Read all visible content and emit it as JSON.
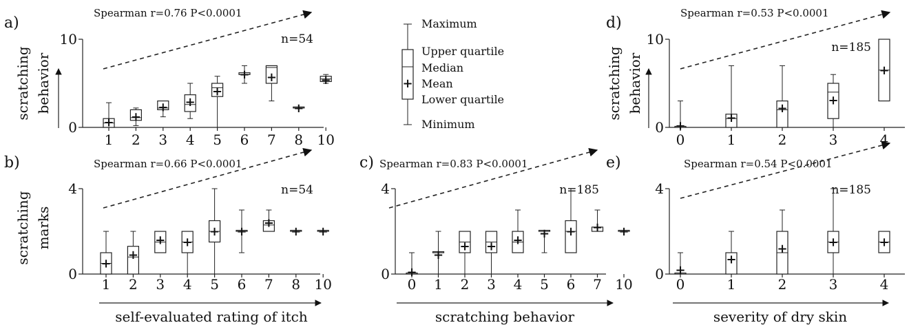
{
  "legend": {
    "maximum": "Maximum",
    "upper_quartile": "Upper quartile",
    "median": "Median",
    "mean": "Mean",
    "lower_quartile": "Lower quartile",
    "minimum": "Minimum"
  },
  "chart_data": [
    {
      "panel": "a)",
      "type": "box",
      "annotation": "Spearman r=0.76 P<0.0001",
      "n_label": "n=54",
      "ylabel": [
        "scratching",
        "behavior"
      ],
      "xlabel": "",
      "ylim": [
        0,
        10
      ],
      "yticks": [
        0,
        10
      ],
      "categories": [
        "1",
        "2",
        "3",
        "4",
        "5",
        "6",
        "7",
        "8",
        "10"
      ],
      "min": [
        0,
        0.2,
        1.2,
        1.0,
        0,
        5,
        3,
        2.2,
        5
      ],
      "q1": [
        0,
        0.8,
        2.0,
        1.8,
        3.5,
        6.0,
        5.0,
        2.2,
        5.2
      ],
      "median": [
        0.5,
        1.1,
        2.2,
        2.6,
        4.5,
        6.0,
        6.8,
        2.2,
        5.5
      ],
      "q3": [
        1.0,
        2.0,
        3.0,
        3.7,
        5.0,
        6.2,
        7.0,
        2.2,
        5.8
      ],
      "max": [
        2.8,
        2.2,
        3.0,
        5.0,
        5.8,
        7.0,
        7.0,
        2.2,
        6.0
      ],
      "mean": [
        0.6,
        1.2,
        2.3,
        2.9,
        4.1,
        6.0,
        5.7,
        2.2,
        5.4
      ]
    },
    {
      "panel": "b)",
      "type": "box",
      "annotation": "Spearman r=0.66 P<0.0001",
      "n_label": "n=54",
      "ylabel": [
        "scratching",
        "marks"
      ],
      "xlabel": "self-evaluated rating of itch",
      "ylim": [
        0,
        4
      ],
      "yticks": [
        0,
        4
      ],
      "categories": [
        "1",
        "2",
        "3",
        "4",
        "5",
        "6",
        "7",
        "8",
        "10"
      ],
      "min": [
        0,
        0,
        1.0,
        0,
        0,
        1.0,
        2.0,
        2.0,
        2.0
      ],
      "q1": [
        0,
        0,
        1.0,
        1.0,
        1.5,
        2.0,
        2.0,
        2.0,
        2.0
      ],
      "median": [
        0.5,
        0.8,
        1.5,
        1.5,
        2.0,
        2.0,
        2.3,
        2.0,
        2.0
      ],
      "q3": [
        1.0,
        1.3,
        2.0,
        2.0,
        2.5,
        2.0,
        2.5,
        2.0,
        2.0
      ],
      "max": [
        2.0,
        2.0,
        2.0,
        2.0,
        4.0,
        3.0,
        3.0,
        2.0,
        2.0
      ],
      "mean": [
        0.5,
        0.9,
        1.6,
        1.5,
        2.0,
        2.0,
        2.4,
        2.0,
        2.0
      ]
    },
    {
      "panel": "c)",
      "type": "box",
      "annotation": "Spearman r=0.83 P<0.0001",
      "n_label": "n=185",
      "ylabel": [
        "",
        ""
      ],
      "xlabel": "scratching behavior",
      "ylim": [
        0,
        4
      ],
      "yticks": [
        0,
        4
      ],
      "categories": [
        "0",
        "1",
        "2",
        "3",
        "4",
        "5",
        "6",
        "7",
        "10"
      ],
      "min": [
        0,
        0,
        0,
        0,
        1.0,
        1.0,
        1.0,
        2.0,
        2.0
      ],
      "q1": [
        0,
        1.0,
        1.0,
        1.0,
        1.0,
        2.0,
        1.0,
        2.0,
        2.0
      ],
      "median": [
        0,
        1.0,
        1.5,
        1.5,
        1.5,
        2.0,
        2.0,
        2.0,
        2.0
      ],
      "q3": [
        0,
        1.0,
        2.0,
        2.0,
        2.0,
        2.0,
        2.5,
        2.2,
        2.0
      ],
      "max": [
        1.0,
        2.0,
        2.0,
        2.0,
        3.0,
        2.0,
        4.0,
        3.0,
        2.0
      ],
      "mean": [
        0.1,
        0.9,
        1.3,
        1.3,
        1.6,
        1.9,
        2.0,
        2.2,
        2.0
      ]
    },
    {
      "panel": "d)",
      "type": "box",
      "annotation": "Spearman r=0.53 P<0.0001",
      "n_label": "n=185",
      "ylabel": [
        "scratching",
        "behavior"
      ],
      "xlabel": "",
      "ylim": [
        0,
        10
      ],
      "yticks": [
        0,
        10
      ],
      "categories": [
        "0",
        "1",
        "2",
        "3",
        "4"
      ],
      "min": [
        0,
        0,
        0,
        0,
        3
      ],
      "q1": [
        0,
        0,
        0,
        1.0,
        3
      ],
      "median": [
        0,
        1.0,
        2.0,
        4.0,
        6.5
      ],
      "q3": [
        0,
        1.5,
        3.0,
        5.0,
        10
      ],
      "max": [
        3,
        7,
        7,
        6,
        10
      ],
      "mean": [
        0.2,
        1.1,
        2.2,
        3.1,
        6.5
      ]
    },
    {
      "panel": "e)",
      "type": "box",
      "annotation": "Spearman r=0.54 P<0.0001",
      "n_label": "n=185",
      "ylabel": [
        "",
        ""
      ],
      "xlabel": "severity of dry skin",
      "ylim": [
        0,
        4
      ],
      "yticks": [
        0,
        4
      ],
      "categories": [
        "0",
        "1",
        "2",
        "3",
        "4"
      ],
      "min": [
        0,
        0,
        0,
        0,
        1.0
      ],
      "q1": [
        0,
        0,
        0,
        1.0,
        1.0
      ],
      "median": [
        0,
        1.0,
        1.0,
        1.5,
        1.5
      ],
      "q3": [
        0,
        1.0,
        2.0,
        2.0,
        2.0
      ],
      "max": [
        1.0,
        2.0,
        3.0,
        4.0,
        2.0
      ],
      "mean": [
        0.2,
        0.7,
        1.2,
        1.5,
        1.5
      ]
    }
  ]
}
